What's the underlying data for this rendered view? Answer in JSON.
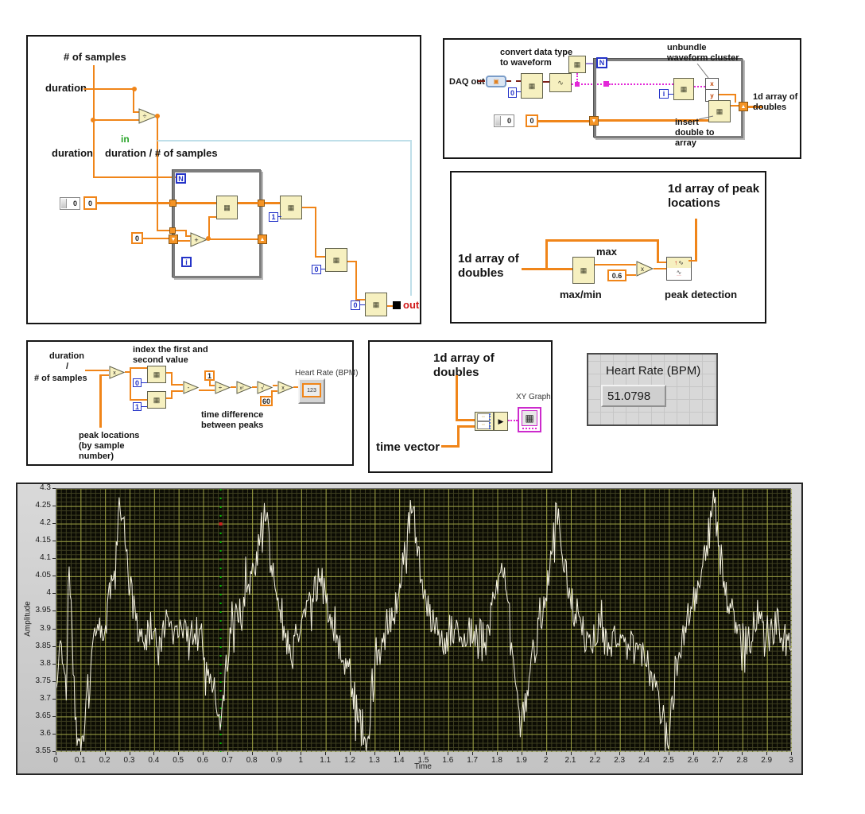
{
  "ops": {
    "add": "+",
    "sub": "-",
    "div": "÷",
    "mul": "x",
    "sq": "x²",
    "sqrt": "√"
  },
  "glyphs": {
    "zero": "0",
    "one": "1",
    "sixty": "60",
    "point_six": "0.6",
    "n": "N",
    "i": "i",
    "x": "x",
    "y": "y",
    "digits": "123"
  },
  "icon_glyphs": {
    "grid": "▦",
    "wave": "∿",
    "arrow_right": "▶",
    "sr_down": "▼",
    "sr_up": "▲",
    "peak_arrow": "↑",
    "dots": "···",
    "daq": "▣",
    "pair": "◦◦"
  },
  "panel_loop": {
    "num_samples": "# of samples",
    "duration_top": "duration",
    "in_label": "in",
    "duration_left": "duration",
    "duration_div": "duration / # of samples",
    "out_label": "out"
  },
  "panel_daq": {
    "daq_out": "DAQ out",
    "convert": "convert data type\nto waveform",
    "unbundle": "unbundle\nwaveform cluster",
    "insert": "insert\ndouble to\narray",
    "result": "1d array of\ndoubles"
  },
  "panel_peak": {
    "input": "1d array of\ndoubles",
    "output": "1d array of peak\nlocations",
    "max": "max",
    "maxmin": "max/min",
    "peak": "peak detection"
  },
  "panel_hr": {
    "duration": "duration",
    "slash": "/",
    "num_samples": "# of samples",
    "index_note": "index the first and\nsecond value",
    "timediff_note": "time difference\nbetween peaks",
    "peaklocs_note": "peak locations\n(by sample\nnumber)",
    "hr_label": "Heart Rate (BPM)"
  },
  "panel_xy": {
    "input": "1d array of\ndoubles",
    "time_vector": "time vector",
    "xy_graph": "XY Graph"
  },
  "hr_display": {
    "label": "Heart Rate (BPM)",
    "value": "51.0798"
  },
  "chart_data": {
    "type": "line",
    "title": "",
    "xlabel": "Time",
    "ylabel": "Amplitude",
    "xlim": [
      0,
      3
    ],
    "ylim": [
      3.55,
      4.3
    ],
    "x_tick_labels": [
      "0",
      "0.1",
      "0.2",
      "0.3",
      "0.4",
      "0.5",
      "0.6",
      "0.7",
      "0.8",
      "0.9",
      "1",
      "1.1",
      "1.2",
      "1.3",
      "1.4",
      "1.5",
      "1.6",
      "1.7",
      "1.8",
      "1.9",
      "2",
      "2.1",
      "2.2",
      "2.3",
      "2.4",
      "2.5",
      "2.6",
      "2.7",
      "2.8",
      "2.9",
      "3"
    ],
    "y_tick_labels": [
      "4.3",
      "4.25",
      "4.2",
      "4.15",
      "4.1",
      "4.05",
      "4",
      "3.95",
      "3.9",
      "3.85",
      "3.8",
      "3.75",
      "3.7",
      "3.65",
      "3.6",
      "3.55"
    ],
    "grid": true,
    "plot_bg": "#0c0c04",
    "major_grid": "#9ca144",
    "minor_grid": "#3e3f20",
    "minor_per_major_x": 5,
    "minor_per_major_y": 4,
    "line_color": "#f4f1e0",
    "legend": "none",
    "cursor": {
      "x": 0.67,
      "color": "#00c000",
      "marker_y": 4.2,
      "marker_color": "#cc2020"
    },
    "peaks_at_t": [
      0.26,
      0.85,
      1.45,
      2.04,
      2.68
    ],
    "series": [
      {
        "name": "waveform",
        "dt": 0.004,
        "noise_amp": 0.05,
        "seed": 977,
        "anchors": [
          [
            0,
            3.78
          ],
          [
            0.02,
            3.87
          ],
          [
            0.04,
            3.72
          ],
          [
            0.05,
            4.11
          ],
          [
            0.07,
            3.78
          ],
          [
            0.08,
            3.6
          ],
          [
            0.1,
            3.57
          ],
          [
            0.12,
            3.68
          ],
          [
            0.15,
            3.86
          ],
          [
            0.18,
            3.92
          ],
          [
            0.2,
            3.88
          ],
          [
            0.22,
            4.02
          ],
          [
            0.24,
            4.1
          ],
          [
            0.26,
            4.28
          ],
          [
            0.28,
            4.18
          ],
          [
            0.3,
            4.02
          ],
          [
            0.33,
            3.9
          ],
          [
            0.36,
            3.86
          ],
          [
            0.39,
            3.92
          ],
          [
            0.42,
            3.85
          ],
          [
            0.45,
            3.92
          ],
          [
            0.48,
            3.87
          ],
          [
            0.51,
            3.93
          ],
          [
            0.54,
            3.86
          ],
          [
            0.57,
            3.9
          ],
          [
            0.6,
            3.82
          ],
          [
            0.63,
            3.78
          ],
          [
            0.65,
            3.7
          ],
          [
            0.67,
            3.63
          ],
          [
            0.7,
            3.84
          ],
          [
            0.73,
            3.92
          ],
          [
            0.76,
            3.98
          ],
          [
            0.79,
            4.05
          ],
          [
            0.82,
            4.1
          ],
          [
            0.85,
            4.27
          ],
          [
            0.87,
            4.12
          ],
          [
            0.9,
            3.98
          ],
          [
            0.93,
            3.88
          ],
          [
            0.96,
            3.82
          ],
          [
            1,
            3.92
          ],
          [
            1.04,
            4
          ],
          [
            1.08,
            4.04
          ],
          [
            1.12,
            3.9
          ],
          [
            1.16,
            3.84
          ],
          [
            1.2,
            3.76
          ],
          [
            1.24,
            3.62
          ],
          [
            1.27,
            3.55
          ],
          [
            1.3,
            3.78
          ],
          [
            1.34,
            3.88
          ],
          [
            1.38,
            3.96
          ],
          [
            1.42,
            4.12
          ],
          [
            1.45,
            4.26
          ],
          [
            1.47,
            4.15
          ],
          [
            1.5,
            4
          ],
          [
            1.54,
            3.9
          ],
          [
            1.58,
            3.85
          ],
          [
            1.62,
            3.92
          ],
          [
            1.66,
            3.87
          ],
          [
            1.7,
            3.9
          ],
          [
            1.74,
            3.88
          ],
          [
            1.78,
            3.94
          ],
          [
            1.82,
            4.07
          ],
          [
            1.84,
            3.98
          ],
          [
            1.87,
            3.8
          ],
          [
            1.9,
            3.62
          ],
          [
            1.93,
            3.78
          ],
          [
            1.96,
            3.88
          ],
          [
            2,
            4.02
          ],
          [
            2.04,
            4.24
          ],
          [
            2.06,
            4.15
          ],
          [
            2.09,
            4
          ],
          [
            2.13,
            3.92
          ],
          [
            2.17,
            3.86
          ],
          [
            2.21,
            3.9
          ],
          [
            2.25,
            3.85
          ],
          [
            2.29,
            3.9
          ],
          [
            2.33,
            3.86
          ],
          [
            2.37,
            3.84
          ],
          [
            2.41,
            3.8
          ],
          [
            2.44,
            3.74
          ],
          [
            2.47,
            3.65
          ],
          [
            2.5,
            3.6
          ],
          [
            2.53,
            3.8
          ],
          [
            2.57,
            3.92
          ],
          [
            2.61,
            4
          ],
          [
            2.65,
            4.12
          ],
          [
            2.68,
            4.28
          ],
          [
            2.71,
            4.1
          ],
          [
            2.74,
            3.98
          ],
          [
            2.78,
            3.9
          ],
          [
            2.82,
            3.86
          ],
          [
            2.86,
            3.94
          ],
          [
            2.9,
            3.86
          ],
          [
            2.94,
            3.92
          ],
          [
            2.97,
            3.85
          ],
          [
            3,
            3.88
          ]
        ]
      }
    ]
  }
}
